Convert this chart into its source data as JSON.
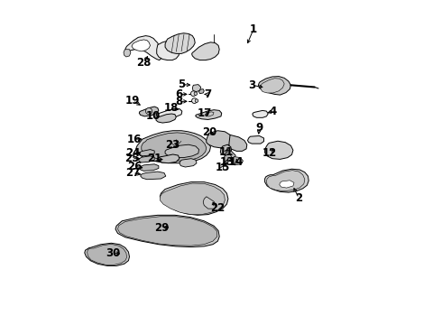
{
  "bg_color": "#ffffff",
  "line_color": "#000000",
  "text_color": "#000000",
  "fig_width": 4.9,
  "fig_height": 3.6,
  "dpi": 100,
  "label_fontsize": 8.5,
  "arrow_lw": 0.7,
  "part_lw": 0.7,
  "fill_color": "#e8e8e8",
  "dark_fill": "#c8c8c8",
  "label_positions": {
    "1": [
      0.6,
      0.91,
      0.578,
      0.858
    ],
    "2": [
      0.74,
      0.39,
      0.72,
      0.43
    ],
    "3": [
      0.595,
      0.738,
      0.638,
      0.73
    ],
    "4": [
      0.66,
      0.658,
      0.635,
      0.65
    ],
    "5": [
      0.378,
      0.74,
      0.415,
      0.738
    ],
    "6": [
      0.37,
      0.71,
      0.405,
      0.71
    ],
    "7": [
      0.46,
      0.71,
      0.44,
      0.71
    ],
    "8": [
      0.37,
      0.688,
      0.405,
      0.688
    ],
    "9": [
      0.618,
      0.608,
      0.615,
      0.578
    ],
    "10": [
      0.29,
      0.642,
      0.32,
      0.64
    ],
    "11": [
      0.515,
      0.532,
      0.525,
      0.55
    ],
    "12": [
      0.65,
      0.53,
      0.668,
      0.548
    ],
    "13": [
      0.518,
      0.502,
      0.525,
      0.52
    ],
    "14": [
      0.548,
      0.502,
      0.548,
      0.518
    ],
    "15": [
      0.505,
      0.486,
      0.512,
      0.5
    ],
    "16": [
      0.232,
      0.572,
      0.265,
      0.572
    ],
    "17": [
      0.45,
      0.652,
      0.472,
      0.648
    ],
    "18": [
      0.348,
      0.668,
      0.378,
      0.66
    ],
    "19": [
      0.228,
      0.69,
      0.26,
      0.672
    ],
    "20": [
      0.465,
      0.592,
      0.488,
      0.585
    ],
    "21": [
      0.295,
      0.512,
      0.33,
      0.508
    ],
    "22": [
      0.49,
      0.36,
      0.468,
      0.385
    ],
    "23": [
      0.352,
      0.555,
      0.378,
      0.548
    ],
    "24": [
      0.228,
      0.53,
      0.262,
      0.528
    ],
    "25": [
      0.225,
      0.512,
      0.26,
      0.512
    ],
    "26": [
      0.235,
      0.488,
      0.268,
      0.482
    ],
    "27": [
      0.228,
      0.468,
      0.262,
      0.462
    ],
    "28": [
      0.262,
      0.808,
      0.28,
      0.835
    ],
    "29": [
      0.318,
      0.298,
      0.348,
      0.302
    ],
    "30": [
      0.168,
      0.222,
      0.198,
      0.218
    ]
  }
}
